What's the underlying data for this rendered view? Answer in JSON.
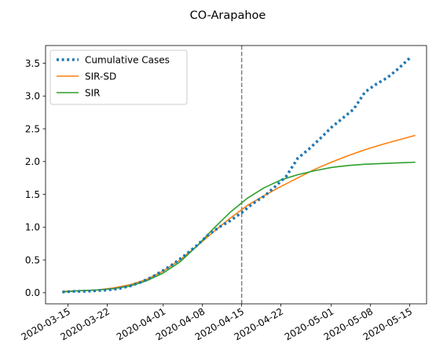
{
  "chart_data": {
    "type": "line",
    "title": "CO-Arapahoe",
    "xlabel": "",
    "ylabel": "",
    "x_axis": {
      "type": "date",
      "range": [
        "2020-03-11",
        "2020-05-18"
      ],
      "ticks": [
        "2020-03-15",
        "2020-03-22",
        "2020-04-01",
        "2020-04-08",
        "2020-04-15",
        "2020-04-22",
        "2020-05-01",
        "2020-05-08",
        "2020-05-15"
      ],
      "tick_labels": [
        "2020-03-15",
        "2020-03-22",
        "2020-04-01",
        "2020-04-08",
        "2020-04-15",
        "2020-04-22",
        "2020-05-01",
        "2020-05-08",
        "2020-05-15"
      ]
    },
    "y_axis": {
      "range": [
        -0.17,
        3.77
      ],
      "ticks": [
        0.0,
        0.5,
        1.0,
        1.5,
        2.0,
        2.5,
        3.0,
        3.5
      ],
      "tick_labels": [
        "0.0",
        "0.5",
        "1.0",
        "1.5",
        "2.0",
        "2.5",
        "3.0",
        "3.5"
      ]
    },
    "grid": false,
    "legend": {
      "placement": "upper-left"
    },
    "vline": {
      "x": "2020-04-15",
      "color": "#7f7f7f",
      "style": "dashed"
    },
    "series": [
      {
        "name": "Cumulative Cases",
        "color": "#1f77b4",
        "style": "dotted",
        "points": [
          [
            "2020-03-14",
            0.01
          ],
          [
            "2020-03-16",
            0.02
          ],
          [
            "2020-03-18",
            0.02
          ],
          [
            "2020-03-20",
            0.03
          ],
          [
            "2020-03-22",
            0.04
          ],
          [
            "2020-03-24",
            0.06
          ],
          [
            "2020-03-26",
            0.1
          ],
          [
            "2020-03-28",
            0.16
          ],
          [
            "2020-03-30",
            0.24
          ],
          [
            "2020-04-01",
            0.34
          ],
          [
            "2020-04-03",
            0.45
          ],
          [
            "2020-04-05",
            0.58
          ],
          [
            "2020-04-07",
            0.72
          ],
          [
            "2020-04-09",
            0.88
          ],
          [
            "2020-04-11",
            1.0
          ],
          [
            "2020-04-13",
            1.1
          ],
          [
            "2020-04-15",
            1.22
          ],
          [
            "2020-04-17",
            1.36
          ],
          [
            "2020-04-19",
            1.47
          ],
          [
            "2020-04-21",
            1.62
          ],
          [
            "2020-04-23",
            1.78
          ],
          [
            "2020-04-25",
            2.05
          ],
          [
            "2020-04-27",
            2.19
          ],
          [
            "2020-04-29",
            2.35
          ],
          [
            "2020-05-01",
            2.52
          ],
          [
            "2020-05-03",
            2.66
          ],
          [
            "2020-05-05",
            2.8
          ],
          [
            "2020-05-07",
            3.06
          ],
          [
            "2020-05-09",
            3.18
          ],
          [
            "2020-05-11",
            3.28
          ],
          [
            "2020-05-13",
            3.42
          ],
          [
            "2020-05-15",
            3.58
          ]
        ]
      },
      {
        "name": "SIR-SD",
        "color": "#ff7f0e",
        "style": "solid",
        "points": [
          [
            "2020-03-14",
            0.02
          ],
          [
            "2020-03-17",
            0.03
          ],
          [
            "2020-03-20",
            0.04
          ],
          [
            "2020-03-23",
            0.07
          ],
          [
            "2020-03-26",
            0.12
          ],
          [
            "2020-03-29",
            0.2
          ],
          [
            "2020-04-01",
            0.33
          ],
          [
            "2020-04-04",
            0.5
          ],
          [
            "2020-04-07",
            0.71
          ],
          [
            "2020-04-10",
            0.93
          ],
          [
            "2020-04-13",
            1.14
          ],
          [
            "2020-04-16",
            1.33
          ],
          [
            "2020-04-19",
            1.48
          ],
          [
            "2020-04-22",
            1.62
          ],
          [
            "2020-04-25",
            1.75
          ],
          [
            "2020-04-28",
            1.88
          ],
          [
            "2020-05-01",
            1.99
          ],
          [
            "2020-05-04",
            2.09
          ],
          [
            "2020-05-07",
            2.18
          ],
          [
            "2020-05-10",
            2.26
          ],
          [
            "2020-05-13",
            2.33
          ],
          [
            "2020-05-16",
            2.4
          ]
        ]
      },
      {
        "name": "SIR",
        "color": "#2ca02c",
        "style": "solid",
        "points": [
          [
            "2020-03-14",
            0.01
          ],
          [
            "2020-03-17",
            0.03
          ],
          [
            "2020-03-20",
            0.04
          ],
          [
            "2020-03-23",
            0.06
          ],
          [
            "2020-03-26",
            0.1
          ],
          [
            "2020-03-29",
            0.18
          ],
          [
            "2020-04-01",
            0.3
          ],
          [
            "2020-04-04",
            0.47
          ],
          [
            "2020-04-07",
            0.71
          ],
          [
            "2020-04-10",
            0.98
          ],
          [
            "2020-04-13",
            1.23
          ],
          [
            "2020-04-16",
            1.44
          ],
          [
            "2020-04-19",
            1.6
          ],
          [
            "2020-04-22",
            1.72
          ],
          [
            "2020-04-25",
            1.8
          ],
          [
            "2020-04-28",
            1.86
          ],
          [
            "2020-05-01",
            1.91
          ],
          [
            "2020-05-04",
            1.94
          ],
          [
            "2020-05-07",
            1.96
          ],
          [
            "2020-05-10",
            1.97
          ],
          [
            "2020-05-13",
            1.98
          ],
          [
            "2020-05-16",
            1.99
          ]
        ]
      }
    ]
  }
}
